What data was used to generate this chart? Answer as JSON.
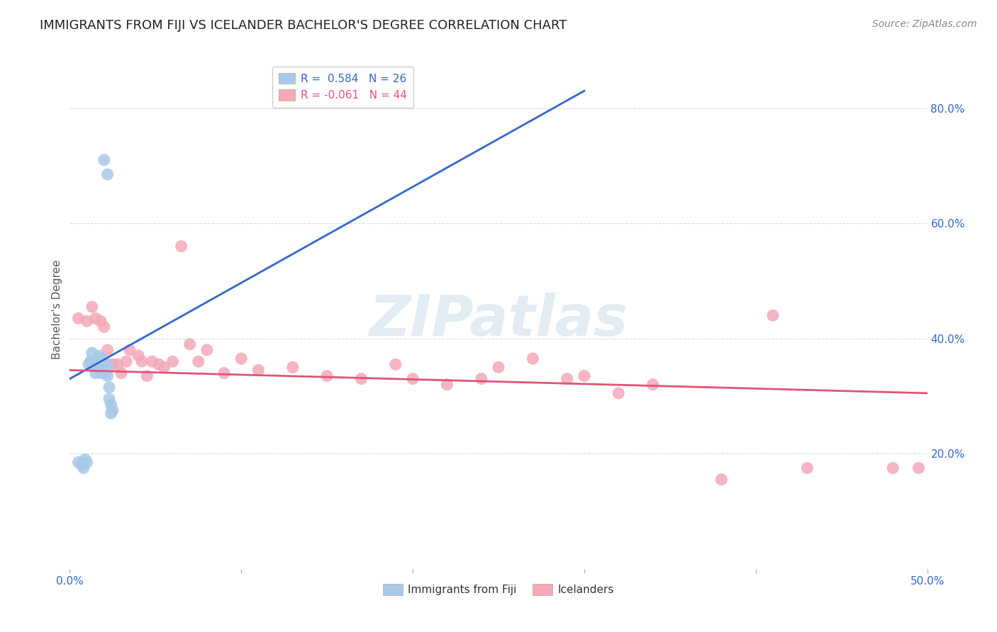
{
  "title": "IMMIGRANTS FROM FIJI VS ICELANDER BACHELOR'S DEGREE CORRELATION CHART",
  "source_text": "Source: ZipAtlas.com",
  "ylabel": "Bachelor's Degree",
  "xlim": [
    0.0,
    0.5
  ],
  "ylim": [
    0.0,
    0.9
  ],
  "xticks": [
    0.0,
    0.1,
    0.2,
    0.3,
    0.4,
    0.5
  ],
  "yticks_left": [],
  "yticks_right": [
    0.2,
    0.4,
    0.6,
    0.8
  ],
  "xticklabels": [
    "0.0%",
    "",
    "",
    "",
    "",
    "50.0%"
  ],
  "yticklabels_right": [
    "20.0%",
    "40.0%",
    "60.0%",
    "80.0%"
  ],
  "fiji_color": "#a8c8e8",
  "iceland_color": "#f4a8b8",
  "fiji_line_color": "#3366cc",
  "iceland_line_color": "#e05575",
  "fiji_R": 0.584,
  "fiji_N": 26,
  "iceland_R": -0.061,
  "iceland_N": 44,
  "fiji_x": [
    0.005,
    0.007,
    0.008,
    0.009,
    0.01,
    0.011,
    0.012,
    0.013,
    0.014,
    0.015,
    0.016,
    0.017,
    0.018,
    0.019,
    0.019,
    0.02,
    0.021,
    0.022,
    0.022,
    0.023,
    0.023,
    0.024,
    0.024,
    0.025,
    0.02,
    0.022
  ],
  "fiji_y": [
    0.185,
    0.18,
    0.175,
    0.19,
    0.185,
    0.355,
    0.36,
    0.375,
    0.355,
    0.34,
    0.36,
    0.37,
    0.34,
    0.345,
    0.365,
    0.35,
    0.34,
    0.335,
    0.355,
    0.315,
    0.295,
    0.285,
    0.27,
    0.275,
    0.71,
    0.685
  ],
  "iceland_x": [
    0.005,
    0.01,
    0.013,
    0.015,
    0.018,
    0.02,
    0.022,
    0.025,
    0.028,
    0.03,
    0.033,
    0.035,
    0.04,
    0.042,
    0.045,
    0.048,
    0.052,
    0.055,
    0.06,
    0.065,
    0.07,
    0.075,
    0.08,
    0.09,
    0.1,
    0.11,
    0.13,
    0.15,
    0.17,
    0.19,
    0.2,
    0.22,
    0.24,
    0.25,
    0.27,
    0.29,
    0.3,
    0.32,
    0.34,
    0.38,
    0.41,
    0.43,
    0.48,
    0.495
  ],
  "iceland_y": [
    0.435,
    0.43,
    0.455,
    0.435,
    0.43,
    0.42,
    0.38,
    0.355,
    0.355,
    0.34,
    0.36,
    0.38,
    0.37,
    0.36,
    0.335,
    0.36,
    0.355,
    0.35,
    0.36,
    0.56,
    0.39,
    0.36,
    0.38,
    0.34,
    0.365,
    0.345,
    0.35,
    0.335,
    0.33,
    0.355,
    0.33,
    0.32,
    0.33,
    0.35,
    0.365,
    0.33,
    0.335,
    0.305,
    0.32,
    0.155,
    0.44,
    0.175,
    0.175,
    0.175
  ],
  "title_fontsize": 13,
  "tick_fontsize": 11,
  "legend_fontsize": 11,
  "background_color": "#ffffff",
  "grid_color": "#cccccc",
  "grid_alpha": 0.7,
  "watermark_color": "#c8d8e8",
  "watermark_alpha": 0.5
}
